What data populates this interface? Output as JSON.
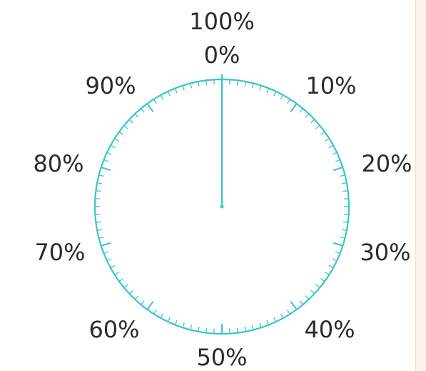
{
  "dial": {
    "colors": {
      "ring": "#3cc4c5",
      "label": "#2b2b2b",
      "page_strip": "#fcf2e9"
    },
    "ticks_total": 100,
    "pointer_percent": 0,
    "labels": {
      "p100": "100%",
      "p0": "0%",
      "p10": "10%",
      "p20": "20%",
      "p30": "30%",
      "p40": "40%",
      "p50": "50%",
      "p60": "60%",
      "p70": "70%",
      "p80": "80%",
      "p90": "90%"
    }
  }
}
